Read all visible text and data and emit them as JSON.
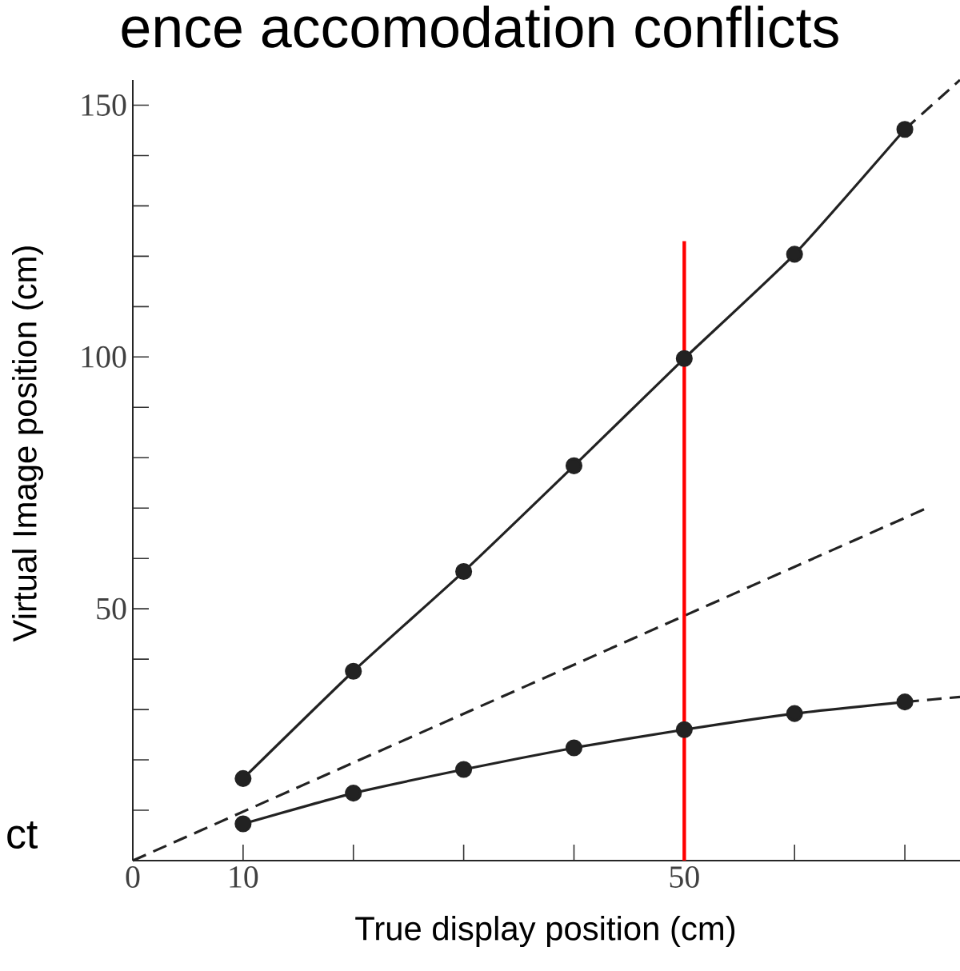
{
  "chart_data": {
    "type": "line",
    "title": "ence accomodation conflicts",
    "xlabel": "True display position (cm)",
    "ylabel": "Virtual Image position (cm)",
    "annotations": [
      "ct"
    ],
    "xlim": [
      0,
      75
    ],
    "ylim": [
      0,
      155
    ],
    "xticks": [
      0,
      10,
      {
        "value": 20,
        "label": null
      },
      {
        "value": 30,
        "label": null
      },
      {
        "value": 40,
        "label": null
      },
      50,
      {
        "value": 60,
        "label": null
      },
      {
        "value": 70,
        "label": null
      }
    ],
    "yticks": [
      {
        "value": 10,
        "label": null
      },
      {
        "value": 20,
        "label": null
      },
      {
        "value": 30,
        "label": null
      },
      {
        "value": 40,
        "label": null
      },
      50,
      {
        "value": 60,
        "label": null
      },
      {
        "value": 70,
        "label": null
      },
      {
        "value": 80,
        "label": null
      },
      {
        "value": 90,
        "label": null
      },
      100,
      {
        "value": 110,
        "label": null
      },
      {
        "value": 120,
        "label": null
      },
      {
        "value": 130,
        "label": null
      },
      {
        "value": 140,
        "label": null
      },
      150
    ],
    "grid": false,
    "series": [
      {
        "color": "#222222",
        "x": [
          10,
          20,
          30,
          40,
          50,
          60,
          70
        ],
        "values": [
          16.3,
          37.6,
          57.4,
          78.4,
          99.7,
          120.4,
          145.2
        ],
        "marker": "circle",
        "line_style": "solid"
      },
      {
        "color": "#222222",
        "x": [
          70,
          75
        ],
        "values": [
          145.2,
          155
        ],
        "marker": "none",
        "line_style": "dashed"
      },
      {
        "color": "#222222",
        "x": [
          10,
          20,
          30,
          40,
          50,
          60,
          70
        ],
        "values": [
          7.3,
          13.4,
          18.1,
          22.4,
          26,
          29.2,
          31.5
        ],
        "marker": "circle",
        "line_style": "solid"
      },
      {
        "color": "#222222",
        "x": [
          70,
          75
        ],
        "values": [
          31.5,
          32.5
        ],
        "marker": "none",
        "line_style": "dashed"
      },
      {
        "color": "#222222",
        "x": [
          0,
          72
        ],
        "values": [
          0,
          70
        ],
        "marker": "none",
        "line_style": "dashed"
      },
      {
        "color": "#ff0000",
        "x": [
          50,
          50
        ],
        "values": [
          0,
          123
        ],
        "marker": "none",
        "line_style": "solid"
      }
    ]
  }
}
